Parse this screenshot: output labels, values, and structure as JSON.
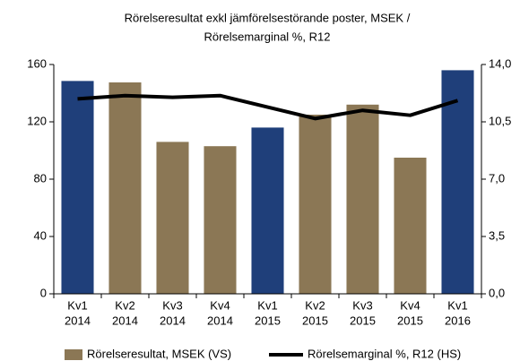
{
  "chart_data": {
    "type": "bar_line",
    "title": [
      "Rörelseresultat exkl jämförelsestörande poster, MSEK /",
      "Rörelsemarginal %, R12"
    ],
    "categories": [
      [
        "Kv1",
        "2014"
      ],
      [
        "Kv2",
        "2014"
      ],
      [
        "Kv3",
        "2014"
      ],
      [
        "Kv4",
        "2014"
      ],
      [
        "Kv1",
        "2015"
      ],
      [
        "Kv2",
        "2015"
      ],
      [
        "Kv3",
        "2015"
      ],
      [
        "Kv4",
        "2015"
      ],
      [
        "Kv1",
        "2016"
      ]
    ],
    "series": [
      {
        "name": "Rörelseresultat, MSEK (VS)",
        "type": "bar",
        "color": "#8b7755",
        "bar_colors": [
          "#1f3f7a",
          "#8b7755",
          "#8b7755",
          "#8b7755",
          "#1f3f7a",
          "#8b7755",
          "#8b7755",
          "#8b7755",
          "#1f3f7a"
        ],
        "values": [
          148.5,
          147.5,
          106,
          103,
          116,
          125,
          132,
          95,
          156
        ]
      },
      {
        "name": "Rörelsemarginal %, R12 (HS)",
        "type": "line",
        "color": "#000000",
        "axis": "y2",
        "values": [
          11.9,
          12.1,
          12.0,
          12.1,
          11.4,
          10.7,
          11.2,
          10.9,
          11.8
        ]
      }
    ],
    "ylim": [
      0,
      160
    ],
    "yticks": [
      0,
      40,
      80,
      120,
      160
    ],
    "y2lim": [
      0,
      14
    ],
    "y2ticks": [
      {
        "value": 0,
        "label": "0,0"
      },
      {
        "value": 3.5,
        "label": "3,5"
      },
      {
        "value": 7,
        "label": "7,0"
      },
      {
        "value": 10.5,
        "label": "10,5"
      },
      {
        "value": 14,
        "label": "14,0"
      }
    ],
    "grid": false
  }
}
